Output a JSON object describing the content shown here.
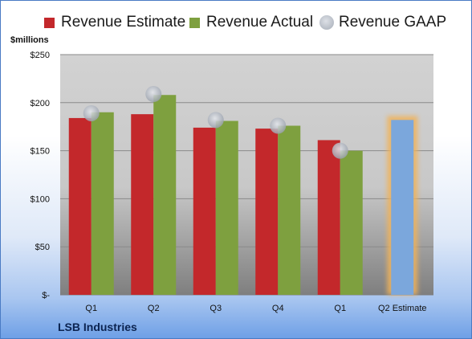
{
  "chart_data": {
    "type": "bar",
    "ylabel": "$millions",
    "ylim": [
      0,
      250
    ],
    "yticks": [
      0,
      50,
      100,
      150,
      200,
      250
    ],
    "ytick_labels": [
      "$-",
      "$50",
      "$100",
      "$150",
      "$200",
      "$250"
    ],
    "categories": [
      "Q1",
      "Q2",
      "Q3",
      "Q4",
      "Q1",
      "Q2 Estimate"
    ],
    "series": [
      {
        "name": "Revenue Estimate",
        "type": "bar",
        "color": "#c3282b",
        "values": [
          184,
          188,
          174,
          173,
          161,
          null
        ]
      },
      {
        "name": "Revenue Actual",
        "type": "bar",
        "color": "#7ea03f",
        "values": [
          190,
          208,
          181,
          176,
          150,
          null
        ]
      },
      {
        "name": "Revenue GAAP",
        "type": "scatter",
        "color": "#a9b0bb",
        "values": [
          189,
          209,
          182,
          176,
          150,
          null
        ]
      }
    ],
    "estimate_bar": {
      "category": "Q2 Estimate",
      "value": 182,
      "color": "#7ba7dc",
      "glow": "#f0b25a"
    },
    "company": "LSB Industries",
    "grid": true,
    "legend": "top"
  }
}
